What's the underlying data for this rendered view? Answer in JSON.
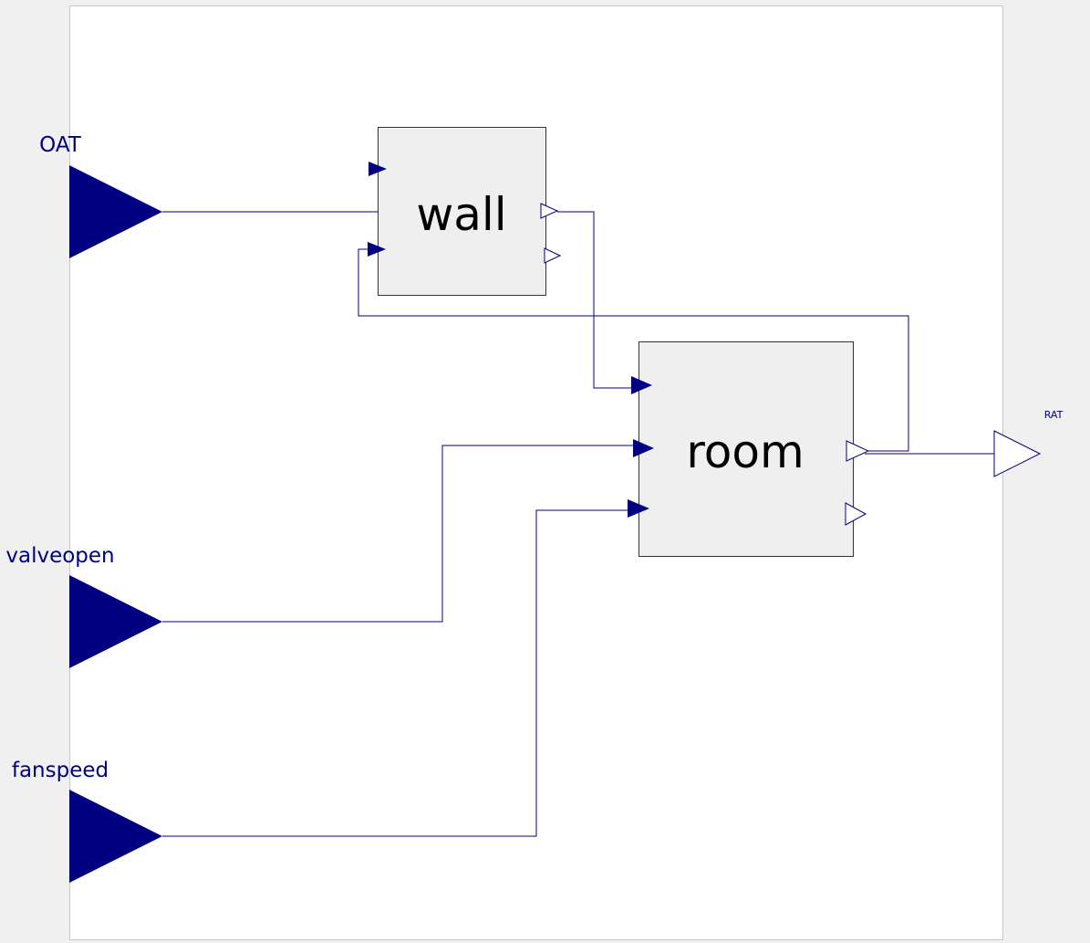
{
  "colors": {
    "wire": "#000080",
    "block_fill": "#efefef",
    "block_stroke": "#333333",
    "canvas": "#ffffff",
    "background": "#f0f0f0",
    "label_text": "#000080",
    "block_text": "#000000"
  },
  "inputs": [
    {
      "id": "oat",
      "label": "OAT"
    },
    {
      "id": "valveopen",
      "label": "valveopen"
    },
    {
      "id": "fanspeed",
      "label": "fanspeed"
    }
  ],
  "blocks": [
    {
      "id": "wall",
      "label": "wall",
      "inputs": 2,
      "outputs": 2
    },
    {
      "id": "room",
      "label": "room",
      "inputs": 3,
      "outputs": 2
    }
  ],
  "outputs": [
    {
      "id": "rat",
      "label": "RAT"
    }
  ],
  "connections": [
    {
      "from": "OAT",
      "to": "wall.u1"
    },
    {
      "from": "wall.y1",
      "to": "room.u1"
    },
    {
      "from": "room.y1",
      "to": "wall.u2"
    },
    {
      "from": "valveopen",
      "to": "room.u2"
    },
    {
      "from": "fanspeed",
      "to": "room.u3"
    },
    {
      "from": "room.y1",
      "to": "RAT"
    }
  ]
}
